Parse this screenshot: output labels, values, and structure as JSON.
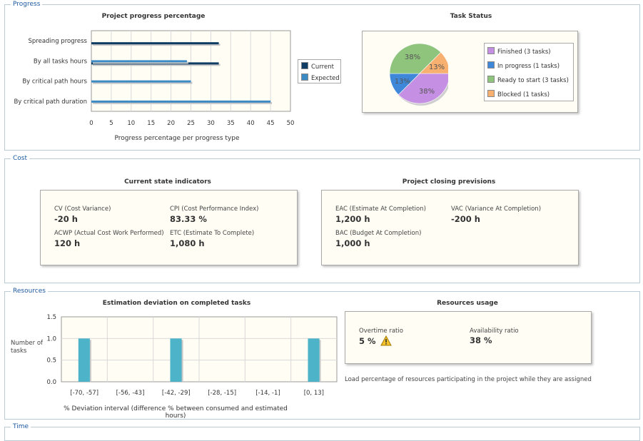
{
  "sections": {
    "progress": "Progress",
    "cost": "Cost",
    "resources": "Resources",
    "time": "Time"
  },
  "progress_chart": {
    "title": "Project progress percentage",
    "xlabel": "Progress percentage per progress type",
    "legend": {
      "current": "Current",
      "expected": "Expected"
    },
    "colors": {
      "current": "#0f3d63",
      "expected": "#3d8bc4"
    }
  },
  "task_status": {
    "title": "Task Status",
    "legend": [
      {
        "label": "Finished (3 tasks)",
        "color": "#c58fe3"
      },
      {
        "label": "In progress (1 tasks)",
        "color": "#3f88d9"
      },
      {
        "label": "Ready to start (3 tasks)",
        "color": "#8fc47d"
      },
      {
        "label": "Blocked (1 tasks)",
        "color": "#f7b070"
      }
    ]
  },
  "cost": {
    "current_title": "Current state indicators",
    "closing_title": "Project closing previsions",
    "cv_label": "CV (Cost Variance)",
    "cv_value": "-20 h",
    "cpi_label": "CPI (Cost Performance Index)",
    "cpi_value": "83.33 %",
    "acwp_label": "ACWP (Actual Cost Work Performed)",
    "acwp_value": "120 h",
    "etc_label": "ETC (Estimate To Complete)",
    "etc_value": "1,080 h",
    "eac_label": "EAC (Estimate At Completion)",
    "eac_value": "1,200 h",
    "vac_label": "VAC (Variance At Completion)",
    "vac_value": "-200 h",
    "bac_label": "BAC (Budget At Completion)",
    "bac_value": "1,000 h"
  },
  "deviation_chart": {
    "title": "Estimation deviation on completed tasks",
    "ylabel_line1": "Number of",
    "ylabel_line2": "tasks",
    "xlabel": "% Deviation interval (difference % between consumed and estimated hours)",
    "color": "#4cb3c8"
  },
  "resources": {
    "usage_title": "Resources usage",
    "overtime_label": "Overtime ratio",
    "overtime_value": "5 %",
    "availability_label": "Availability ratio",
    "availability_value": "38 %",
    "note": "Load percentage of resources participating in the project while they are assigned"
  },
  "chart_data": [
    {
      "type": "bar",
      "orientation": "horizontal",
      "title": "Project progress percentage",
      "categories": [
        "Spreading progress",
        "By all tasks hours",
        "By critical path hours",
        "By critical path duration"
      ],
      "series": [
        {
          "name": "Current",
          "values": [
            32,
            32,
            null,
            null
          ]
        },
        {
          "name": "Expected",
          "values": [
            null,
            24,
            25,
            45
          ]
        }
      ],
      "xlabel": "Progress percentage per progress type",
      "xlim": [
        0,
        50
      ],
      "xticks": [
        0,
        5,
        10,
        15,
        20,
        25,
        30,
        35,
        40,
        45,
        50
      ],
      "grid": true,
      "legend": "right"
    },
    {
      "type": "pie",
      "title": "Task Status",
      "labels": [
        "Finished (3 tasks)",
        "In progress (1 tasks)",
        "Ready to start (3 tasks)",
        "Blocked (1 tasks)"
      ],
      "values": [
        3,
        1,
        3,
        1
      ],
      "slice_labels": [
        "38%",
        "13%",
        "38%",
        "13%"
      ],
      "legend": "right"
    },
    {
      "type": "bar",
      "title": "Estimation deviation on completed tasks",
      "categories": [
        "[-70, -57]",
        "[-56, -43]",
        "[-42, -29]",
        "[-28, -15]",
        "[-14, -1]",
        "[0, 13]"
      ],
      "values": [
        1,
        0,
        1,
        0,
        0,
        1
      ],
      "ylabel": "Number of tasks",
      "xlabel": "% Deviation interval (difference % between consumed and estimated hours)",
      "ylim": [
        0,
        1.5
      ],
      "yticks": [
        "0.0",
        "0.5",
        "1.0",
        "1.5"
      ],
      "grid": true
    }
  ]
}
